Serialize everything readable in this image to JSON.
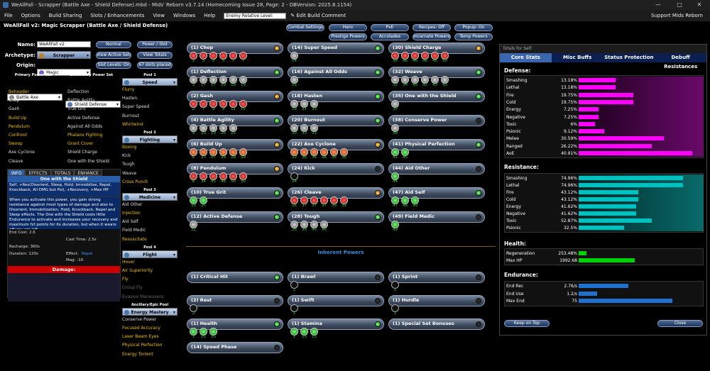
{
  "window": {
    "title": "WeAllFall - Scrapper (Battle Axe - Shield Defense).mbd - Mids' Reborn v3.7.14  (Homecoming Issue 28, Page: 2 - DBVersion: 2025.8.1154)"
  },
  "menu": {
    "items": [
      "File",
      "Options",
      "Build Sharing",
      "Slots / Enhancements",
      "View",
      "Windows",
      "Help"
    ],
    "enemy_level": "Enemy Relative Level: Default",
    "edit_comment": "Edit Build Comment",
    "support": "Support Mids Reborn"
  },
  "build": {
    "header": "WeAllFall v2: Magic Scrapper (Battle Axe / Shield Defense)",
    "name_label": "Name:",
    "name": "WeAllFall v2",
    "archetype_label": "Archetype:",
    "archetype": "Scrapper",
    "origin_label": "Origin:",
    "origin": "Magic"
  },
  "buttons": {
    "normal": "Normal",
    "power_slot": "Power / Slot",
    "view_active_sets": "View Active Sets",
    "view_totals": "View Totals",
    "slot_levels": "Slot Levels: On",
    "slots_placed": "67 slots placed",
    "combat_settings": "Combat Settings",
    "hero": "Hero",
    "pve": "PvE",
    "recipes": "Recipes: Off",
    "popup": "Popup: On",
    "prestige": "Prestige Powers",
    "accolades": "Accolades",
    "incarnate": "Incarnate Powers",
    "temp": "Temp Powers",
    "keep_on_top": "Keep on Top",
    "close": "Close"
  },
  "primary": {
    "header": "Primary Power Set",
    "set": "Battle Axe",
    "powers": [
      {
        "n": "Beheader",
        "c": "y"
      },
      {
        "n": "Chop",
        "c": "w"
      },
      {
        "n": "Gash",
        "c": "w"
      },
      {
        "n": "Build Up",
        "c": "y"
      },
      {
        "n": "Pendulum",
        "c": "y"
      },
      {
        "n": "Confront",
        "c": "y"
      },
      {
        "n": "Swoop",
        "c": "y"
      },
      {
        "n": "Axe Cyclone",
        "c": "w"
      },
      {
        "n": "Cleave",
        "c": "w"
      }
    ]
  },
  "secondary": {
    "header": "Secondary Power Set",
    "set": "Shield Defense",
    "powers": [
      {
        "n": "Deflection",
        "c": "w"
      },
      {
        "n": "Battle Agility",
        "c": "w"
      },
      {
        "n": "True Grit",
        "c": "w"
      },
      {
        "n": "Active Defense",
        "c": "w"
      },
      {
        "n": "Against All Odds",
        "c": "w"
      },
      {
        "n": "Phalanx Fighting",
        "c": "y"
      },
      {
        "n": "Grant Cover",
        "c": "y"
      },
      {
        "n": "Shield Charge",
        "c": "w"
      },
      {
        "n": "One with the Shield",
        "c": "w"
      }
    ]
  },
  "pools": [
    {
      "header": "Pool 1",
      "set": "Speed",
      "powers": [
        {
          "n": "Flurry",
          "c": "y"
        },
        {
          "n": "Hasten",
          "c": "w"
        },
        {
          "n": "Super Speed",
          "c": "w"
        },
        {
          "n": "Burnout",
          "c": "w"
        },
        {
          "n": "Whirlwind",
          "c": "y"
        }
      ]
    },
    {
      "header": "Pool 2",
      "set": "Fighting",
      "powers": [
        {
          "n": "Boxing",
          "c": "y"
        },
        {
          "n": "Kick",
          "c": "w"
        },
        {
          "n": "Tough",
          "c": "w"
        },
        {
          "n": "Weave",
          "c": "w"
        },
        {
          "n": "Cross Punch",
          "c": "y"
        }
      ]
    },
    {
      "header": "Pool 3",
      "set": "Medicine",
      "powers": [
        {
          "n": "Aid Other",
          "c": "w"
        },
        {
          "n": "Injection",
          "c": "y"
        },
        {
          "n": "Aid Self",
          "c": "w"
        },
        {
          "n": "Field Medic",
          "c": "w"
        },
        {
          "n": "Resuscitate",
          "c": "y"
        }
      ]
    },
    {
      "header": "Pool 4",
      "set": "Flight",
      "powers": [
        {
          "n": "Hover",
          "c": "y"
        },
        {
          "n": "Air Superiority",
          "c": "y"
        },
        {
          "n": "Fly",
          "c": "y"
        },
        {
          "n": "Group Fly",
          "c": "g"
        },
        {
          "n": "Evasive Maneuvers",
          "c": "g"
        }
      ]
    },
    {
      "header": "Ancillary/Epic Pool",
      "set": "Energy Mastery",
      "powers": [
        {
          "n": "Conserve Power",
          "c": "w"
        },
        {
          "n": "Focused Accuracy",
          "c": "y"
        },
        {
          "n": "Laser Beam Eyes",
          "c": "y"
        },
        {
          "n": "Physical Perfection",
          "c": "y"
        },
        {
          "n": "Energy Torrent",
          "c": "y"
        }
      ]
    }
  ],
  "info": {
    "tabs": [
      "INFO",
      "EFFECTS",
      "TOTALS",
      "ENHANCE"
    ],
    "power": "One with the Shield",
    "short": "Self, +Res(Disorient, Sleep, Hold, Immobilize, Repel, Knockback, All DMG but Psi), +Recovery, +Max HP",
    "long": "When you activate this power, you gain strong resistance against most types of damage and also to Disorient, Immobilization, Hold, Knockback, Repel and Sleep effects. The One with the Shield costs little Endurance to activate and increases your recovery and maximum hit points for its duration, but when it wears off you are left",
    "end_cost": "End Cost: 2.6",
    "cast_time": "Cast Time: 2.5s",
    "recharge": "Recharge: 360s",
    "duration": "Duration: 120s",
    "effect_label": "Effect:",
    "effect": "Repel",
    "mag": "Mag: -10",
    "damage": "Damage:"
  },
  "slots": {
    "col1": [
      {
        "n": "(1) Chop",
        "d": "or",
        "e": [
          [
            "red",
            1
          ],
          [
            "red",
            3
          ],
          [
            "red",
            3
          ],
          [
            "red",
            5
          ],
          [
            "red",
            7
          ],
          [
            "red",
            7
          ]
        ]
      },
      {
        "n": "(1) Deflection",
        "d": "gr",
        "e": [
          [
            "grey",
            1
          ],
          [
            "grey",
            17
          ],
          [
            "grey",
            17
          ],
          [
            "grey",
            19
          ],
          [
            "grey",
            19
          ],
          [
            "grey",
            19
          ]
        ]
      },
      {
        "n": "(2) Gash",
        "d": "or",
        "e": [
          [
            "red",
            2
          ],
          [
            "red",
            7
          ],
          [
            "red",
            9
          ],
          [
            "red",
            9
          ],
          [
            "red",
            11
          ],
          [
            "red",
            15
          ]
        ]
      },
      {
        "n": "(4) Battle Agility",
        "d": "gr",
        "e": [
          [
            "grey",
            4
          ],
          [
            "grey",
            23
          ],
          [
            "grey",
            23
          ],
          [
            "grey",
            25
          ],
          [
            "grey",
            25
          ]
        ]
      },
      {
        "n": "(6) Build Up",
        "d": "or",
        "e": [
          [
            "org",
            6
          ],
          [
            "org",
            27
          ],
          [
            "org",
            27
          ],
          [
            "org",
            29
          ],
          [
            "org",
            29
          ],
          [
            "org",
            29
          ]
        ]
      },
      {
        "n": "(8) Pendulum",
        "d": "or",
        "e": [
          [
            "red",
            8
          ],
          [
            "red",
            34
          ],
          [
            "red",
            45
          ],
          [
            "red",
            48
          ],
          [
            "red",
            50
          ],
          [
            "red",
            50
          ]
        ]
      },
      {
        "n": "(10) True Grit",
        "d": "gr",
        "e": [
          [
            "grn",
            10
          ],
          [
            "grn",
            25
          ]
        ]
      },
      {
        "n": "(12) Active Defense",
        "d": "gr",
        "e": [
          [
            "grey",
            12
          ]
        ]
      }
    ],
    "col2": [
      {
        "n": "(14) Super Speed",
        "d": "gr",
        "e": [
          [
            "grey",
            14
          ]
        ]
      },
      {
        "n": "(16) Against All Odds",
        "d": "gr",
        "e": [
          [
            "grey",
            16
          ]
        ]
      },
      {
        "n": "(18) Hasten",
        "d": "gr",
        "e": [
          [
            "grey",
            18
          ],
          [
            "grey",
            31
          ],
          [
            "grey",
            33
          ]
        ]
      },
      {
        "n": "(20) Burnout",
        "d": "gr",
        "e": [
          [
            "grey",
            20
          ],
          [
            "grey",
            33
          ],
          [
            "grey",
            33
          ]
        ]
      },
      {
        "n": "(22) Axe Cyclone",
        "d": "or",
        "e": [
          [
            "org",
            22
          ],
          [
            "org",
            36
          ],
          [
            "org",
            36
          ],
          [
            "org",
            36
          ],
          [
            "org",
            36
          ],
          [
            "org",
            36
          ]
        ]
      },
      {
        "n": "(24) Kick",
        "d": "",
        "e": [
          [
            "blk",
            24
          ]
        ]
      },
      {
        "n": "(26) Cleave",
        "d": "or",
        "e": [
          [
            "red",
            26
          ],
          [
            "red",
            37
          ],
          [
            "red",
            37
          ],
          [
            "red",
            37
          ],
          [
            "red",
            39
          ],
          [
            "red",
            39
          ]
        ]
      },
      {
        "n": "(28) Tough",
        "d": "gr",
        "e": [
          [
            "grey",
            28
          ],
          [
            "grey",
            39
          ],
          [
            "grey",
            40
          ],
          [
            "grey",
            40
          ]
        ]
      }
    ],
    "col3": [
      {
        "n": "(30) Shield Charge",
        "d": "or",
        "e": [
          [
            "red",
            30
          ],
          [
            "red",
            46
          ],
          [
            "red",
            46
          ],
          [
            "red",
            46
          ],
          [
            "red",
            48
          ],
          [
            "red",
            50
          ]
        ]
      },
      {
        "n": "(32) Weave",
        "d": "gr",
        "e": [
          [
            "grey",
            32
          ],
          [
            "grey",
            34
          ],
          [
            "grey",
            40
          ],
          [
            "grey",
            42
          ],
          [
            "grey",
            43
          ],
          [
            "grey",
            43
          ]
        ]
      },
      {
        "n": "(35) One with the Shield",
        "d": "gr",
        "e": [
          [
            "grey",
            35
          ]
        ]
      },
      {
        "n": "(38) Conserve Power",
        "d": "",
        "e": [
          [
            "grey",
            38
          ]
        ]
      },
      {
        "n": "(41) Physical Perfection",
        "d": "gr",
        "e": [
          [
            "grn",
            41
          ],
          [
            "grn",
            45
          ]
        ]
      },
      {
        "n": "(44) Aid Other",
        "d": "",
        "e": [
          [
            "grn",
            44
          ]
        ]
      },
      {
        "n": "(47) Aid Self",
        "d": "gr",
        "e": [
          [
            "grn",
            47
          ],
          [
            "grn",
            48
          ],
          [
            "grn",
            49
          ]
        ]
      },
      {
        "n": "(49) Field Medic",
        "d": "",
        "e": [
          [
            "grn",
            49
          ]
        ]
      }
    ],
    "inherent_title": "Inherent Powers",
    "inherent": [
      {
        "n": "(1) Critical Hit",
        "d": "gr",
        "e": []
      },
      {
        "n": "(1) Brawl",
        "d": "",
        "e": [
          [
            "blk",
            1
          ]
        ]
      },
      {
        "n": "(1) Sprint",
        "d": "",
        "e": [
          [
            "blk",
            1
          ]
        ]
      },
      {
        "n": "(2) Rest",
        "d": "",
        "e": [
          [
            "blk",
            2
          ]
        ]
      },
      {
        "n": "(1) Swift",
        "d": "",
        "e": [
          [
            "blk",
            1
          ]
        ]
      },
      {
        "n": "(1) Hurdle",
        "d": "",
        "e": [
          [
            "blk",
            1
          ]
        ]
      },
      {
        "n": "(1) Health",
        "d": "gr",
        "e": [
          [
            "grn",
            1
          ],
          [
            "grn",
            15
          ],
          [
            "grn",
            15
          ]
        ]
      },
      {
        "n": "(1) Stamina",
        "d": "gr",
        "e": [
          [
            "grn",
            1
          ],
          [
            "grn",
            13
          ],
          [
            "grn",
            13
          ]
        ]
      },
      {
        "n": "(1) Special Set Bonuses",
        "d": "",
        "e": []
      },
      {
        "n": "(14) Speed Phase",
        "d": "",
        "e": []
      }
    ]
  },
  "totals": {
    "title": "Totals for Self",
    "tabs": [
      "Core Stats",
      "Misc Buffs",
      "Status Protection",
      "Debuff Resistances"
    ],
    "defense": {
      "title": "Defense:",
      "rows": [
        [
          "Smashing",
          "13.18%",
          13.18
        ],
        [
          "Lethal",
          "13.18%",
          13.18
        ],
        [
          "Fire",
          "19.75%",
          19.75
        ],
        [
          "Cold",
          "19.75%",
          19.75
        ],
        [
          "Energy",
          "7.25%",
          7.25
        ],
        [
          "Negative",
          "7.25%",
          7.25
        ],
        [
          "Toxic",
          "6%",
          6
        ],
        [
          "Psionic",
          "9.12%",
          9.12
        ],
        [
          "Melee",
          "30.59%",
          30.59
        ],
        [
          "Ranged",
          "26.22%",
          26.22
        ],
        [
          "AoE",
          "40.91%",
          40.91
        ]
      ]
    },
    "resistance": {
      "title": "Resistance:",
      "rows": [
        [
          "Smashing",
          "74.96%",
          74.96
        ],
        [
          "Lethal",
          "74.96%",
          74.96
        ],
        [
          "Fire",
          "43.12%",
          43.12
        ],
        [
          "Cold",
          "43.12%",
          43.12
        ],
        [
          "Energy",
          "41.62%",
          41.62
        ],
        [
          "Negative",
          "41.62%",
          41.62
        ],
        [
          "Toxic",
          "52.87%",
          52.87
        ],
        [
          "Psionic",
          "32.5%",
          32.5
        ]
      ]
    },
    "health": {
      "title": "Health:",
      "rows": [
        [
          "Regeneration",
          "253.48%",
          0.06
        ],
        [
          "Max HP",
          "1992.68",
          0.45
        ]
      ]
    },
    "endurance": {
      "title": "Endurance:",
      "rows": [
        [
          "End Rec",
          "2.76/s",
          0.4
        ],
        [
          "End Use",
          "1.2/s",
          0.15
        ],
        [
          "Max End",
          "75",
          0.75
        ]
      ]
    },
    "colors": {
      "defense": "#ff00ff",
      "resistance": "#00c0c0",
      "health": "#00d000",
      "endurance": "#2070d0"
    }
  }
}
